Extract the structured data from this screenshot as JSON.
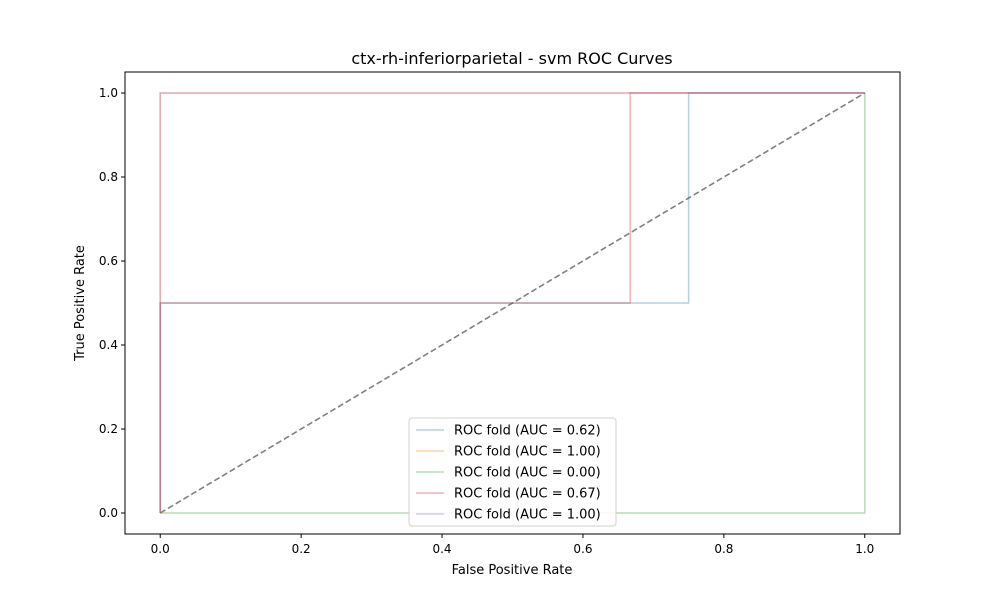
{
  "chart_data": {
    "type": "line",
    "title": "ctx-rh-inferiorparietal - svm ROC Curves",
    "xlabel": "False Positive Rate",
    "ylabel": "True Positive Rate",
    "xlim": [
      -0.05,
      1.05
    ],
    "ylim": [
      -0.05,
      1.05
    ],
    "xticks": [
      0.0,
      0.2,
      0.4,
      0.6,
      0.8,
      1.0
    ],
    "yticks": [
      0.0,
      0.2,
      0.4,
      0.6,
      0.8,
      1.0
    ],
    "xtick_labels": [
      "0.0",
      "0.2",
      "0.4",
      "0.6",
      "0.8",
      "1.0"
    ],
    "ytick_labels": [
      "0.0",
      "0.2",
      "0.4",
      "0.6",
      "0.8",
      "1.0"
    ],
    "grid": false,
    "legend_position": "bottom-center",
    "series": [
      {
        "name": "ROC fold (AUC = 0.62)",
        "color": "#1f77b4",
        "x": [
          0,
          0,
          0.75,
          0.75,
          1.0
        ],
        "y": [
          0,
          0.5,
          0.5,
          1.0,
          1.0
        ]
      },
      {
        "name": "ROC fold (AUC = 1.00)",
        "color": "#ff7f0e",
        "x": [
          0,
          0,
          1.0
        ],
        "y": [
          0,
          1.0,
          1.0
        ]
      },
      {
        "name": "ROC fold (AUC = 0.00)",
        "color": "#2ca02c",
        "x": [
          0,
          1.0,
          1.0
        ],
        "y": [
          0,
          0,
          1.0
        ]
      },
      {
        "name": "ROC fold (AUC = 0.67)",
        "color": "#d62728",
        "x": [
          0,
          0,
          0.667,
          0.667,
          1.0
        ],
        "y": [
          0,
          0.5,
          0.5,
          1.0,
          1.0
        ]
      },
      {
        "name": "ROC fold (AUC = 1.00)",
        "color": "#9467bd",
        "x": [
          0,
          0,
          1.0
        ],
        "y": [
          0,
          1.0,
          1.0
        ]
      }
    ],
    "reference_line": {
      "x": [
        0,
        1
      ],
      "y": [
        0,
        1
      ],
      "color": "#808080",
      "style": "dashed"
    }
  }
}
